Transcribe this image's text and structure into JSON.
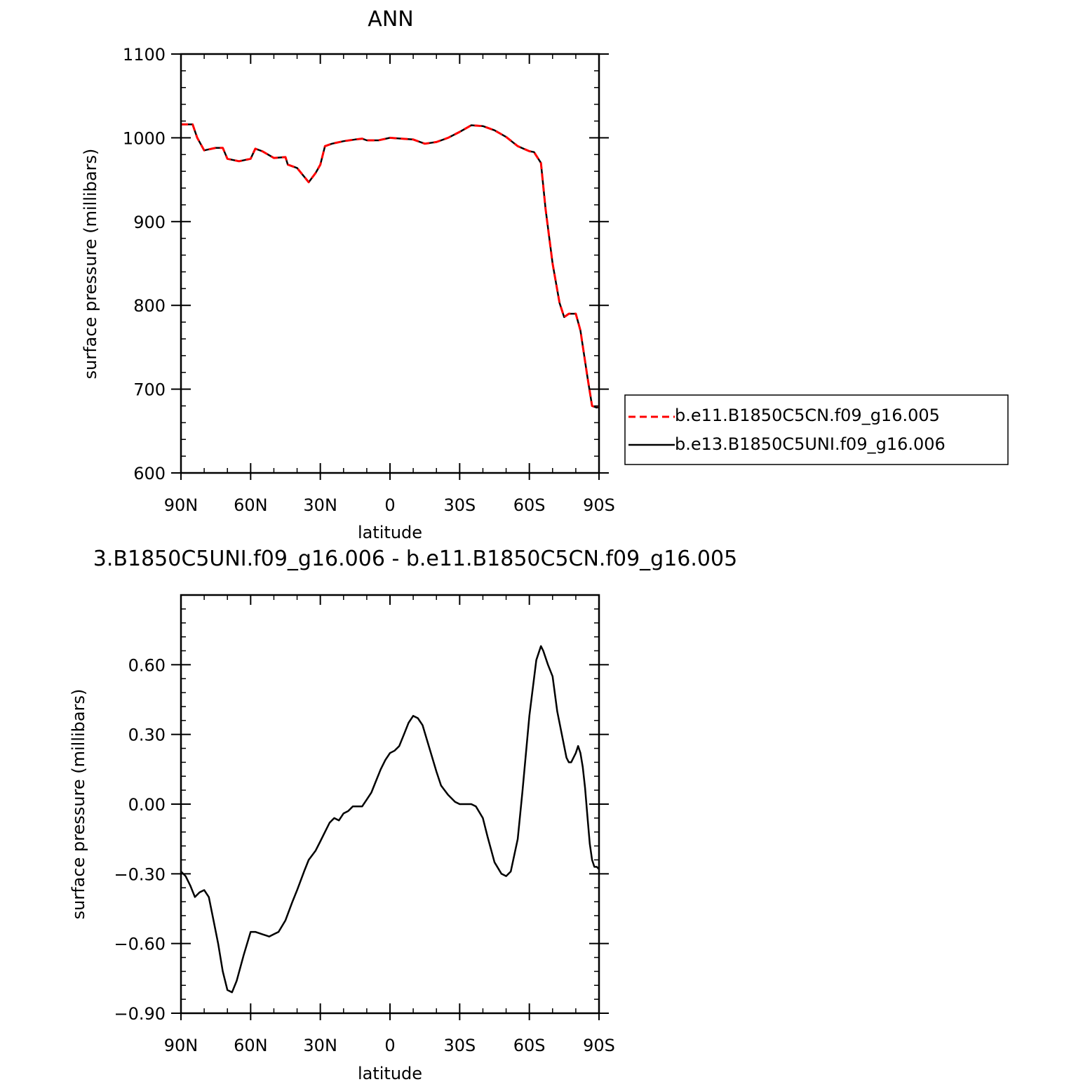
{
  "figure": {
    "top_title": "ANN",
    "bottom_title": "3.B1850C5UNI.f09_g16.006 - b.e11.B1850C5CN.f09_g16.005"
  },
  "colors": {
    "series_a": "#ff0000",
    "series_b": "#000000",
    "axes": "#000000",
    "background": "#ffffff"
  },
  "chart_data": [
    {
      "type": "line",
      "title": "ANN",
      "xlabel": "latitude",
      "ylabel": "surface pressure (millibars)",
      "xlim": [
        90,
        -90
      ],
      "ylim": [
        600,
        1100
      ],
      "x_tick_values": [
        90,
        60,
        30,
        0,
        -30,
        -60,
        -90
      ],
      "x_tick_labels": [
        "90N",
        "60N",
        "30N",
        "0",
        "30S",
        "60S",
        "90S"
      ],
      "y_tick_values": [
        600,
        700,
        800,
        900,
        1000,
        1100
      ],
      "y_tick_labels": [
        "600",
        "700",
        "800",
        "900",
        "1000",
        "1100"
      ],
      "grid": false,
      "legend_position": "right",
      "x": [
        90,
        85,
        83,
        80,
        75,
        72,
        70,
        65,
        60,
        58,
        55,
        50,
        45,
        44,
        40,
        35,
        32,
        30,
        28,
        25,
        20,
        15,
        12,
        10,
        5,
        0,
        -5,
        -10,
        -15,
        -20,
        -25,
        -30,
        -35,
        -40,
        -45,
        -50,
        -55,
        -60,
        -62,
        -65,
        -67,
        -70,
        -73,
        -75,
        -77,
        -80,
        -82,
        -85,
        -87,
        -89,
        -90
      ],
      "series": [
        {
          "name": "b.e11.B1850C5CN.f09_g16.005",
          "style": "dashed",
          "y": [
            1016,
            1016,
            1000,
            985,
            988,
            988,
            975,
            972,
            975,
            987,
            984,
            976,
            977,
            968,
            964,
            947,
            958,
            968,
            990,
            993,
            996,
            998,
            999,
            997,
            997,
            1000,
            999,
            998,
            993,
            995,
            1000,
            1007,
            1015,
            1014,
            1009,
            1001,
            990,
            984,
            983,
            970,
            915,
            850,
            803,
            786,
            790,
            790,
            770,
            715,
            680,
            678,
            679
          ]
        },
        {
          "name": "b.e13.B1850C5UNI.f09_g16.006",
          "style": "solid",
          "y": [
            1016,
            1016,
            1000,
            985,
            988,
            988,
            975,
            972,
            975,
            987,
            984,
            976,
            977,
            968,
            964,
            947,
            958,
            968,
            990,
            993,
            996,
            998,
            999,
            997,
            997,
            1000,
            999,
            998,
            993,
            995,
            1000,
            1007,
            1015,
            1014,
            1009,
            1001,
            990,
            984,
            983,
            970,
            915,
            850,
            803,
            786,
            790,
            790,
            770,
            715,
            680,
            678,
            679
          ]
        }
      ]
    },
    {
      "type": "line",
      "title": "3.B1850C5UNI.f09_g16.006 - b.e11.B1850C5CN.f09_g16.005",
      "xlabel": "latitude",
      "ylabel": "surface pressure (millibars)",
      "xlim": [
        90,
        -90
      ],
      "ylim": [
        -0.9,
        0.9
      ],
      "x_tick_values": [
        90,
        60,
        30,
        0,
        -30,
        -60,
        -90
      ],
      "x_tick_labels": [
        "90N",
        "60N",
        "30N",
        "0",
        "30S",
        "60S",
        "90S"
      ],
      "y_tick_values": [
        -0.9,
        -0.6,
        -0.3,
        0.0,
        0.3,
        0.6
      ],
      "y_tick_labels": [
        "−0.90",
        "−0.60",
        "−0.30",
        "0.00",
        "0.30",
        "0.60"
      ],
      "grid": false,
      "x": [
        90,
        88,
        86,
        84,
        82,
        80,
        78,
        76,
        74,
        72,
        70,
        68,
        66,
        63,
        60,
        58,
        55,
        52,
        50,
        48,
        45,
        42,
        40,
        37,
        35,
        32,
        30,
        28,
        26,
        24,
        22,
        20,
        18,
        16,
        14,
        12,
        10,
        8,
        6,
        4,
        2,
        0,
        -2,
        -4,
        -6,
        -8,
        -10,
        -12,
        -14,
        -17,
        -20,
        -22,
        -25,
        -28,
        -30,
        -33,
        -35,
        -37,
        -40,
        -42,
        -45,
        -48,
        -50,
        -52,
        -55,
        -57,
        -60,
        -63,
        -65,
        -66,
        -68,
        -70,
        -72,
        -74,
        -76,
        -77,
        -78,
        -80,
        -81,
        -82,
        -83,
        -84,
        -85,
        -86,
        -87,
        -88,
        -89,
        -90
      ],
      "y": [
        -0.29,
        -0.31,
        -0.35,
        -0.4,
        -0.38,
        -0.37,
        -0.4,
        -0.5,
        -0.6,
        -0.72,
        -0.8,
        -0.81,
        -0.76,
        -0.65,
        -0.55,
        -0.55,
        -0.56,
        -0.57,
        -0.56,
        -0.55,
        -0.5,
        -0.42,
        -0.37,
        -0.29,
        -0.24,
        -0.2,
        -0.16,
        -0.12,
        -0.08,
        -0.06,
        -0.07,
        -0.04,
        -0.03,
        -0.01,
        -0.01,
        -0.01,
        0.02,
        0.05,
        0.1,
        0.15,
        0.19,
        0.22,
        0.23,
        0.25,
        0.3,
        0.35,
        0.38,
        0.37,
        0.34,
        0.24,
        0.14,
        0.08,
        0.04,
        0.01,
        0.0,
        0.0,
        0.0,
        -0.01,
        -0.06,
        -0.14,
        -0.25,
        -0.3,
        -0.31,
        -0.29,
        -0.15,
        0.05,
        0.38,
        0.62,
        0.68,
        0.66,
        0.6,
        0.55,
        0.4,
        0.3,
        0.2,
        0.18,
        0.18,
        0.22,
        0.25,
        0.22,
        0.16,
        0.07,
        -0.05,
        -0.17,
        -0.24,
        -0.27,
        -0.27,
        -0.28
      ]
    }
  ]
}
